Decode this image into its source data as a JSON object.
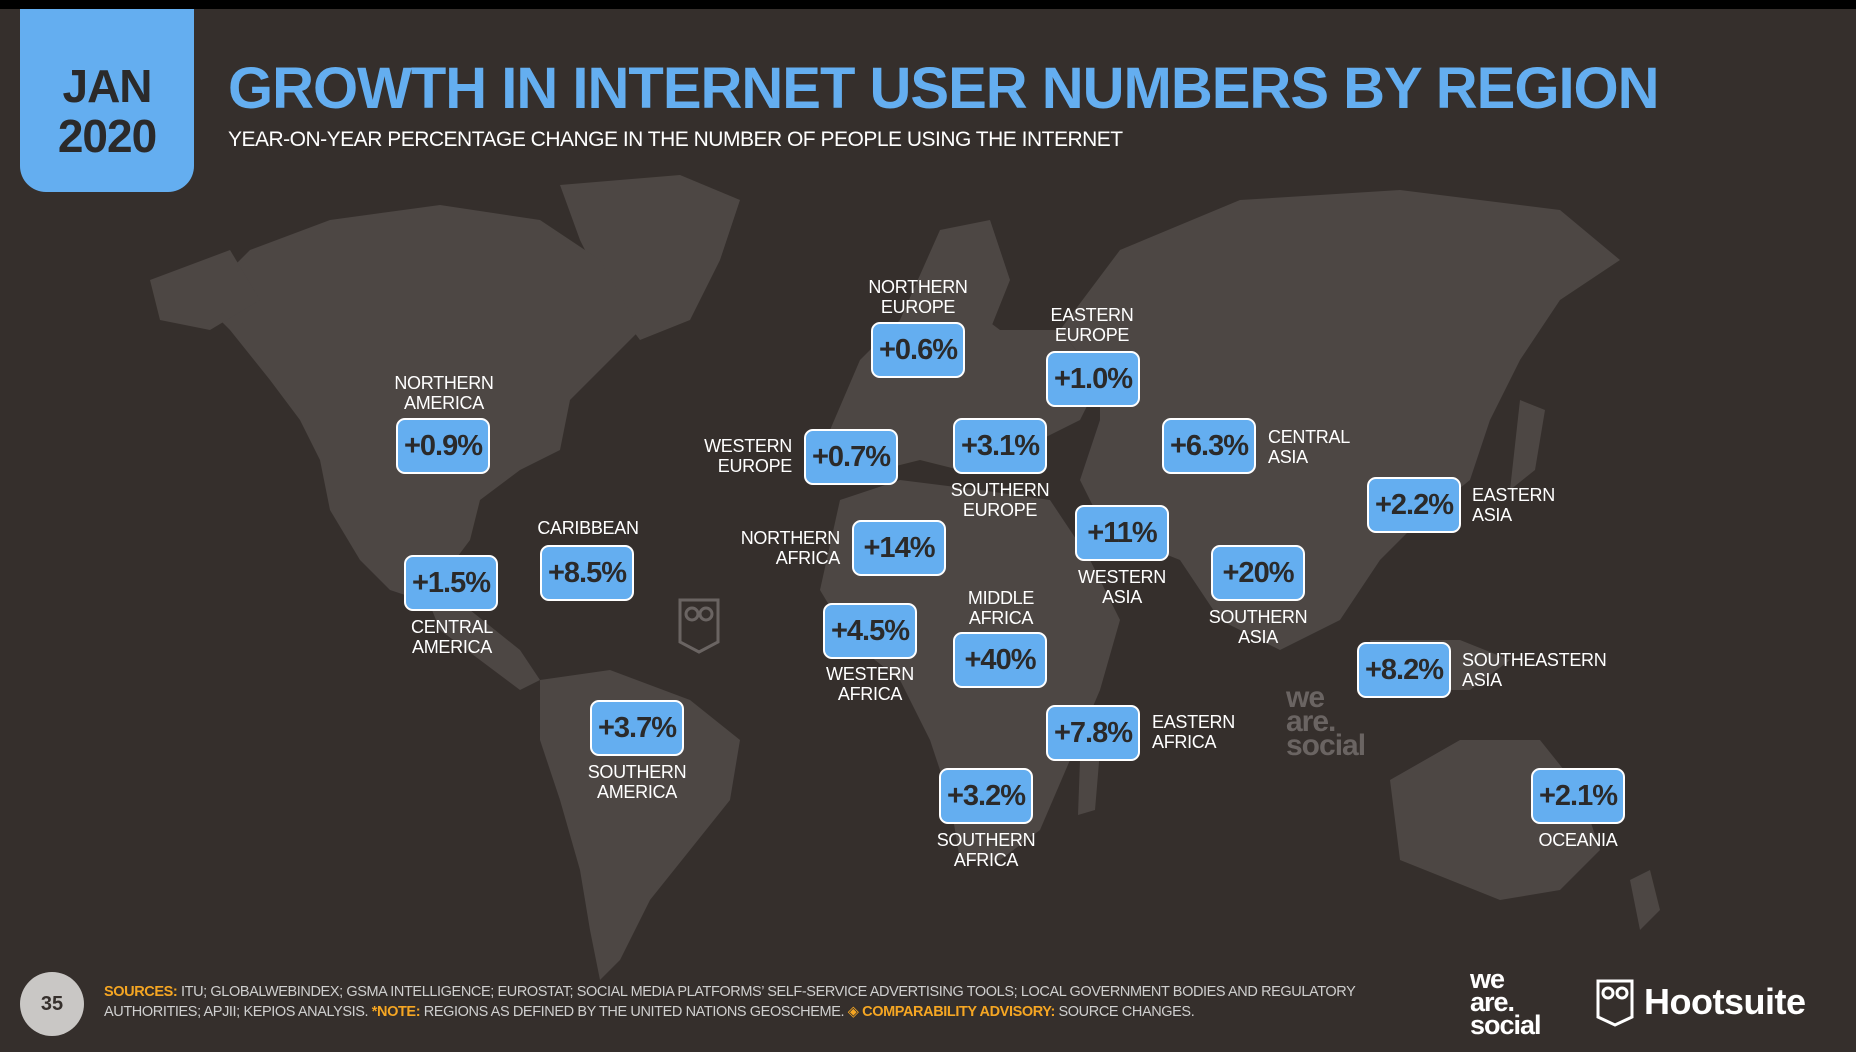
{
  "date_badge": {
    "month": "JAN",
    "year": "2020"
  },
  "title": "GROWTH IN INTERNET USER NUMBERS BY REGION",
  "subtitle": "YEAR-ON-YEAR PERCENTAGE CHANGE IN THE NUMBER OF PEOPLE USING THE INTERNET",
  "regions": {
    "northern_america": {
      "value": "+0.9%",
      "line1": "NORTHERN",
      "line2": "AMERICA"
    },
    "central_america": {
      "value": "+1.5%",
      "line1": "CENTRAL",
      "line2": "AMERICA"
    },
    "caribbean": {
      "value": "+8.5%",
      "line1": "CARIBBEAN",
      "line2": ""
    },
    "southern_america": {
      "value": "+3.7%",
      "line1": "SOUTHERN",
      "line2": "AMERICA"
    },
    "northern_europe": {
      "value": "+0.6%",
      "line1": "NORTHERN",
      "line2": "EUROPE"
    },
    "western_europe": {
      "value": "+0.7%",
      "line1": "WESTERN",
      "line2": "EUROPE"
    },
    "eastern_europe": {
      "value": "+1.0%",
      "line1": "EASTERN",
      "line2": "EUROPE"
    },
    "southern_europe": {
      "value": "+3.1%",
      "line1": "SOUTHERN",
      "line2": "EUROPE"
    },
    "northern_africa": {
      "value": "+14%",
      "line1": "NORTHERN",
      "line2": "AFRICA"
    },
    "western_africa": {
      "value": "+4.5%",
      "line1": "WESTERN",
      "line2": "AFRICA"
    },
    "middle_africa": {
      "value": "+40%",
      "line1": "MIDDLE",
      "line2": "AFRICA"
    },
    "eastern_africa": {
      "value": "+7.8%",
      "line1": "EASTERN",
      "line2": "AFRICA"
    },
    "southern_africa": {
      "value": "+3.2%",
      "line1": "SOUTHERN",
      "line2": "AFRICA"
    },
    "western_asia": {
      "value": "+11%",
      "line1": "WESTERN",
      "line2": "ASIA"
    },
    "central_asia": {
      "value": "+6.3%",
      "line1": "CENTRAL",
      "line2": "ASIA"
    },
    "southern_asia": {
      "value": "+20%",
      "line1": "SOUTHERN",
      "line2": "ASIA"
    },
    "eastern_asia": {
      "value": "+2.2%",
      "line1": "EASTERN",
      "line2": "ASIA"
    },
    "southeastern_asia": {
      "value": "+8.2%",
      "line1": "SOUTHEASTERN",
      "line2": "ASIA"
    },
    "oceania": {
      "value": "+2.1%",
      "line1": "OCEANIA",
      "line2": ""
    }
  },
  "footer": {
    "page_number": "35",
    "sources_label": "SOURCES:",
    "sources_text": "ITU; GLOBALWEBINDEX; GSMA INTELLIGENCE; EUROSTAT; SOCIAL MEDIA PLATFORMS’ SELF-SERVICE ADVERTISING TOOLS; LOCAL GOVERNMENT BODIES AND REGULATORY AUTHORITIES; APJII; KEPIOS ANALYSIS.",
    "note_label": "*NOTE:",
    "note_text": "REGIONS AS DEFINED BY THE UNITED NATIONS GEOSCHEME.",
    "advisory_label": "COMPARABILITY ADVISORY:",
    "advisory_text": "SOURCE CHANGES."
  },
  "logos": {
    "we_are_social": {
      "line1": "we",
      "line2": "are.",
      "line3": "social"
    },
    "hootsuite": "Hootsuite"
  },
  "watermark": {
    "line1": "we",
    "line2": "are.",
    "line3": "social"
  },
  "colors": {
    "background": "#352f2c",
    "land": "#4d4744",
    "accent": "#64aef0",
    "advisory": "#f5a623"
  }
}
